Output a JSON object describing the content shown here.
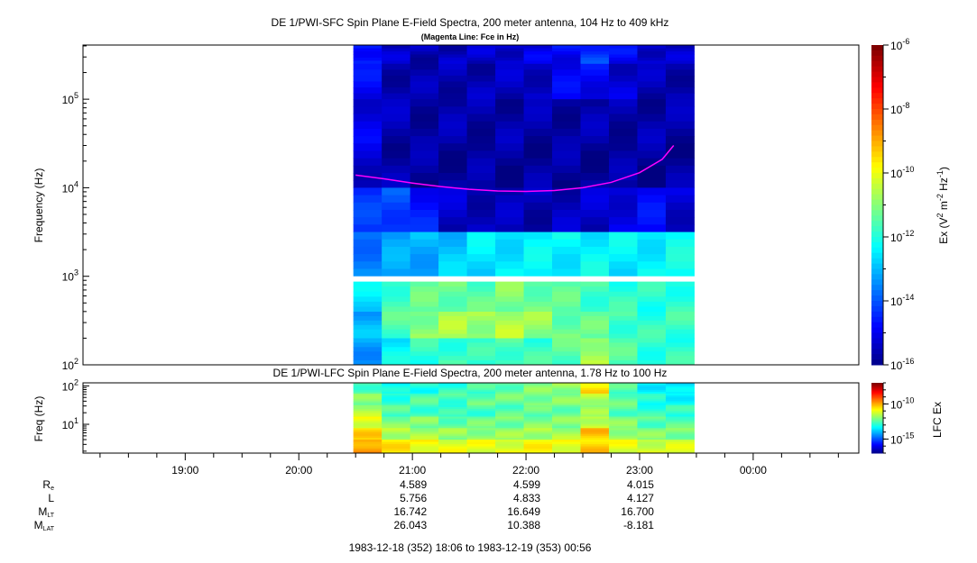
{
  "chart_data": [
    {
      "type": "heatmap",
      "id": "sfc",
      "title": "DE 1/PWI-SFC  Spin Plane E-Field Spectra, 200 meter antenna, 104 Hz to 409 kHz",
      "subtitle": "(Magenta Line: Fce in Hz)",
      "ylabel": "Frequency (Hz)",
      "yscale": "log",
      "ylim": [
        100,
        409000
      ],
      "yticks": [
        {
          "base": "10",
          "exp": "2",
          "value": 100
        },
        {
          "base": "10",
          "exp": "3",
          "value": 1000
        },
        {
          "base": "10",
          "exp": "4",
          "value": 10000
        },
        {
          "base": "10",
          "exp": "5",
          "value": 100000
        }
      ],
      "colorbar": {
        "label": "Ex (V",
        "label_parts": [
          "Ex (V",
          "2",
          " m",
          "-2",
          " Hz",
          "-1",
          ")"
        ],
        "range_log10": [
          -16,
          -6
        ],
        "ticks": [
          {
            "base": "10",
            "exp": "-6",
            "value": -6
          },
          {
            "base": "10",
            "exp": "-8",
            "value": -8
          },
          {
            "base": "10",
            "exp": "-10",
            "value": -10
          },
          {
            "base": "10",
            "exp": "-12",
            "value": -12
          },
          {
            "base": "10",
            "exp": "-14",
            "value": -14
          },
          {
            "base": "10",
            "exp": "-16",
            "value": -16
          }
        ]
      },
      "data_gap_hz": [
        1000,
        880
      ],
      "time_bins_hours": [
        20.5,
        20.75,
        21.0,
        21.25,
        21.5,
        21.75,
        22.0,
        22.25,
        22.5,
        22.75,
        23.0,
        23.25
      ],
      "freq_bands_log10": [
        [
          5.4,
          5.61
        ],
        [
          5.0,
          5.4
        ],
        [
          4.5,
          5.0
        ],
        [
          4.0,
          4.5
        ],
        [
          3.5,
          4.0
        ],
        [
          3.0,
          3.5
        ],
        [
          2.6,
          2.94
        ],
        [
          2.3,
          2.6
        ],
        [
          2.0,
          2.3
        ]
      ],
      "values_log10": [
        [
          -14.5,
          -15.3,
          -15.5,
          -15.4,
          -15.3,
          -15.2,
          -15.0,
          -14.8,
          -14.2,
          -14.8,
          -15.2,
          -15.3
        ],
        [
          -14.8,
          -15.5,
          -15.6,
          -15.5,
          -15.5,
          -15.4,
          -15.3,
          -14.9,
          -14.8,
          -15.2,
          -15.5,
          -15.5
        ],
        [
          -15.0,
          -15.5,
          -15.6,
          -15.6,
          -15.6,
          -15.6,
          -15.6,
          -15.6,
          -15.6,
          -15.6,
          -15.6,
          -15.6
        ],
        [
          -15.2,
          -15.6,
          -15.7,
          -15.7,
          -15.7,
          -15.7,
          -15.7,
          -15.7,
          -15.7,
          -15.7,
          -15.7,
          -15.7
        ],
        [
          -14.3,
          -14.0,
          -14.6,
          -15.3,
          -15.4,
          -15.5,
          -15.5,
          -15.4,
          -15.3,
          -15.0,
          -14.8,
          -15.2
        ],
        [
          -13.5,
          -13.2,
          -13.0,
          -12.8,
          -12.5,
          -12.4,
          -12.4,
          -12.3,
          -12.3,
          -12.4,
          -12.3,
          -12.2
        ],
        [
          -12.5,
          -11.6,
          -11.3,
          -11.2,
          -11.4,
          -11.0,
          -11.2,
          -11.4,
          -11.6,
          -11.8,
          -11.9,
          -11.8
        ],
        [
          -13.0,
          -11.5,
          -10.9,
          -10.6,
          -10.7,
          -10.5,
          -10.8,
          -11.2,
          -11.3,
          -11.6,
          -11.8,
          -11.7
        ],
        [
          -13.2,
          -12.3,
          -11.8,
          -11.7,
          -11.8,
          -11.5,
          -11.7,
          -11.4,
          -10.6,
          -11.5,
          -11.8,
          -11.8
        ]
      ],
      "fce_line": {
        "name": "Fce",
        "color": "#ff00ff",
        "hours": [
          20.5,
          20.75,
          21.0,
          21.25,
          21.5,
          21.75,
          22.0,
          22.25,
          22.5,
          22.75,
          23.0,
          23.2,
          23.3
        ],
        "hz": [
          13900,
          12600,
          11300,
          10300,
          9600,
          9200,
          9100,
          9300,
          10000,
          11500,
          14800,
          21000,
          30000
        ]
      }
    },
    {
      "type": "heatmap",
      "id": "lfc",
      "title": "DE 1/PWI-LFC  Spin Plane E-Field Spectra, 200 meter antenna, 1.78 Hz to 100 Hz",
      "ylabel": "Freq (Hz)",
      "yscale": "log",
      "ylim": [
        1.78,
        120
      ],
      "yticks": [
        {
          "base": "10",
          "exp": "1",
          "value": 10
        },
        {
          "base": "10",
          "exp": "2",
          "value": 100
        }
      ],
      "colorbar": {
        "label": "LFC Ex",
        "range_log10": [
          -17,
          -7
        ],
        "ticks": [
          {
            "base": "10",
            "exp": "-10",
            "value": -10
          },
          {
            "base": "10",
            "exp": "-15",
            "value": -15
          }
        ]
      },
      "time_bins_hours": [
        20.5,
        20.75,
        21.0,
        21.25,
        21.5,
        21.75,
        22.0,
        22.25,
        22.5,
        22.75,
        23.0,
        23.25
      ],
      "freq_bands_log10": [
        [
          1.8,
          2.08
        ],
        [
          1.5,
          1.8
        ],
        [
          1.2,
          1.5
        ],
        [
          0.9,
          1.2
        ],
        [
          0.6,
          0.9
        ],
        [
          0.25,
          0.6
        ]
      ],
      "values_log10": [
        [
          -12.5,
          -13.2,
          -13.0,
          -12.8,
          -12.6,
          -12.3,
          -12.0,
          -11.8,
          -10.5,
          -12.5,
          -13.3,
          -13.5
        ],
        [
          -12.0,
          -12.8,
          -12.5,
          -12.6,
          -12.3,
          -12.2,
          -12.0,
          -12.0,
          -11.5,
          -12.3,
          -13.0,
          -13.2
        ],
        [
          -11.5,
          -12.5,
          -12.6,
          -12.8,
          -12.6,
          -12.4,
          -12.3,
          -12.2,
          -11.8,
          -12.4,
          -12.8,
          -12.8
        ],
        [
          -11.0,
          -12.0,
          -12.0,
          -12.3,
          -12.2,
          -12.1,
          -12.0,
          -12.0,
          -11.3,
          -12.0,
          -12.4,
          -12.4
        ],
        [
          -10.4,
          -11.5,
          -11.6,
          -11.8,
          -11.8,
          -11.8,
          -11.6,
          -11.6,
          -10.2,
          -11.7,
          -12.0,
          -12.0
        ],
        [
          -9.8,
          -10.6,
          -10.8,
          -11.0,
          -11.0,
          -11.0,
          -10.8,
          -10.9,
          -10.3,
          -11.0,
          -11.2,
          -11.2
        ]
      ]
    }
  ],
  "time_axis": {
    "range_hours": [
      18.1,
      24.93
    ],
    "ticks": [
      {
        "label": "19:00",
        "hour": 19
      },
      {
        "label": "20:00",
        "hour": 20
      },
      {
        "label": "21:00",
        "hour": 21
      },
      {
        "label": "22:00",
        "hour": 22
      },
      {
        "label": "23:00",
        "hour": 23
      },
      {
        "label": "00:00",
        "hour": 24
      }
    ]
  },
  "ephemeris": {
    "rows": [
      {
        "label": "R",
        "sub": "e",
        "values": [
          "4.589",
          "4.599",
          "4.015"
        ]
      },
      {
        "label": "L",
        "sub": "",
        "values": [
          "5.756",
          "4.833",
          "4.127"
        ]
      },
      {
        "label": "M",
        "sub": "LT",
        "values": [
          "16.742",
          "16.649",
          "16.700"
        ]
      },
      {
        "label": "M",
        "sub": "LAT",
        "values": [
          "26.043",
          "10.388",
          "-8.181"
        ]
      }
    ],
    "hours": [
      21,
      22,
      23
    ]
  },
  "time_range": "1983-12-18 (352) 18:06 to 1983-12-19 (353) 00:56"
}
